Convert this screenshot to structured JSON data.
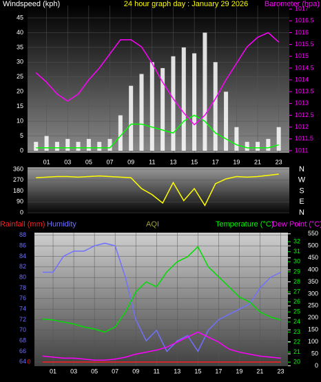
{
  "chart_data": [
    {
      "type": "line",
      "title": "24 hour graph day : January 29 2026",
      "ylabel": "Windspeed (kph)",
      "y2label": "Barometer (hpa)",
      "x": [
        0,
        1,
        2,
        3,
        4,
        5,
        6,
        7,
        8,
        9,
        10,
        11,
        12,
        13,
        14,
        15,
        16,
        17,
        18,
        19,
        20,
        21,
        22,
        23
      ],
      "xlim": [
        -0.8,
        24
      ],
      "xticks": [
        {
          "value": 1,
          "label": "01"
        },
        {
          "value": 3,
          "label": "03"
        },
        {
          "value": 5,
          "label": "05"
        },
        {
          "value": 7,
          "label": "07"
        },
        {
          "value": 9,
          "label": "09"
        },
        {
          "value": 11,
          "label": "11"
        },
        {
          "value": 13,
          "label": "13"
        },
        {
          "value": 15,
          "label": "15"
        },
        {
          "value": 17,
          "label": "17"
        },
        {
          "value": 19,
          "label": "19"
        },
        {
          "value": 21,
          "label": "21"
        },
        {
          "value": 23,
          "label": "23"
        }
      ],
      "ylim": [
        -0.7,
        49.2
      ],
      "yticks": [
        0,
        5,
        10,
        15,
        20,
        25,
        30,
        35,
        40,
        45
      ],
      "ycolor": "#ffffff",
      "y2lim": [
        1010.91,
        1017.15
      ],
      "y2ticks": [
        1011,
        1011.5,
        1012,
        1012.5,
        1013,
        1013.5,
        1014,
        1014.5,
        1015,
        1015.5,
        1016,
        1016.5,
        1017
      ],
      "y2color": "#ff00ff",
      "grid": true,
      "series": [
        {
          "color": "#ffffff",
          "style": "bars",
          "values": [
            3,
            5,
            3,
            4,
            3,
            4,
            3,
            4,
            12,
            22,
            26,
            30,
            28,
            32,
            35,
            33,
            40,
            30,
            20,
            8,
            3,
            3,
            4,
            8
          ]
        },
        {
          "color": "#00ff00",
          "values": [
            1,
            1,
            1,
            1,
            1,
            1,
            1,
            1,
            5,
            9,
            9,
            8,
            7,
            6,
            10,
            12,
            10,
            6,
            4,
            2,
            1,
            1,
            1,
            2
          ]
        },
        {
          "color": "#ff00ff",
          "axis": "y2",
          "values": [
            1014.3,
            1013.9,
            1013.4,
            1013.1,
            1013.4,
            1014.0,
            1014.5,
            1015.1,
            1015.7,
            1015.7,
            1015.4,
            1014.7,
            1013.9,
            1013.2,
            1012.6,
            1012.1,
            1012.5,
            1013.2,
            1014.0,
            1014.7,
            1015.4,
            1015.8,
            1016.0,
            1015.6
          ]
        }
      ]
    },
    {
      "type": "line",
      "x": [
        0,
        1,
        2,
        3,
        4,
        5,
        6,
        7,
        8,
        9,
        10,
        11,
        12,
        13,
        14,
        15,
        16,
        17,
        18,
        19,
        20,
        21,
        22,
        23
      ],
      "xlim": [
        -0.8,
        24
      ],
      "ylim": [
        -17,
        377
      ],
      "yticks": [
        0,
        90,
        180,
        270,
        360
      ],
      "ycolor": "#ffffff",
      "compass": [
        "N",
        "W",
        "S",
        "E",
        "N"
      ],
      "grid": true,
      "series": [
        {
          "color": "#ffff00",
          "values": [
            290,
            295,
            300,
            300,
            295,
            300,
            305,
            300,
            295,
            290,
            200,
            150,
            80,
            250,
            100,
            200,
            60,
            240,
            280,
            300,
            295,
            300,
            310,
            320
          ]
        }
      ]
    },
    {
      "type": "line",
      "labels": [
        {
          "text": "Rainfall (mm)",
          "color": "#ff2020"
        },
        {
          "text": "Humidity",
          "color": "#7070ff"
        },
        {
          "text": "AQI",
          "color": "#a0a040"
        },
        {
          "text": "Temperature (°C)",
          "color": "#00ff00"
        },
        {
          "text": "Dew Point (°C)",
          "color": "#ff00ff"
        }
      ],
      "x": [
        0,
        1,
        2,
        3,
        4,
        5,
        6,
        7,
        8,
        9,
        10,
        11,
        12,
        13,
        14,
        15,
        16,
        17,
        18,
        19,
        20,
        21,
        22,
        23
      ],
      "xlim": [
        -0.8,
        23.7
      ],
      "xticks": [
        {
          "value": 1,
          "label": "01"
        },
        {
          "value": 3,
          "label": "03"
        },
        {
          "value": 5,
          "label": "05"
        },
        {
          "value": 7,
          "label": "07"
        },
        {
          "value": 9,
          "label": "09"
        },
        {
          "value": 11,
          "label": "11"
        },
        {
          "value": 13,
          "label": "13"
        },
        {
          "value": 15,
          "label": "15"
        },
        {
          "value": 17,
          "label": "17"
        },
        {
          "value": 19,
          "label": "19"
        },
        {
          "value": 21,
          "label": "21"
        },
        {
          "value": 23,
          "label": "23"
        }
      ],
      "ylim": [
        63.2,
        88.5
      ],
      "yticks": [
        64,
        66,
        68,
        70,
        72,
        74,
        76,
        78,
        80,
        82,
        84,
        86,
        88
      ],
      "ycolor": "#7070ff",
      "y2lim": [
        19.6,
        32.9
      ],
      "y2ticks": [
        20,
        21,
        22,
        23,
        24,
        25,
        26,
        27,
        28,
        29,
        30,
        31,
        32
      ],
      "y2color": "#00ff00",
      "y3lim": [
        -1.5,
        555
      ],
      "y3ticks": [
        0,
        50,
        100,
        150,
        200,
        250,
        300,
        350,
        400,
        450,
        500,
        550
      ],
      "y3color": "#ffffff",
      "rainticks": [
        0
      ],
      "raincolor": "#ff2020",
      "grid": true,
      "series": [
        {
          "color": "#7070ff",
          "values": [
            81,
            81,
            84,
            85,
            85,
            86,
            86.5,
            86,
            80,
            72,
            68,
            70,
            66,
            68,
            69,
            66,
            70,
            72,
            73,
            74,
            75,
            78,
            80,
            81
          ]
        },
        {
          "color": "#00dd00",
          "axis": "y2",
          "values": [
            24.3,
            24.2,
            24.0,
            23.8,
            23.5,
            23.3,
            23.0,
            23.5,
            25,
            27,
            28,
            27.5,
            29,
            30,
            30.5,
            31.5,
            29.5,
            28.5,
            27.5,
            26.5,
            26,
            25,
            24.5,
            24.2
          ]
        },
        {
          "color": "#ff00ff",
          "axis": "y2",
          "values": [
            20.6,
            20.5,
            20.4,
            20.4,
            20.3,
            20.2,
            20.2,
            20.3,
            20.5,
            20.8,
            21,
            21.2,
            21.5,
            22,
            22.5,
            23,
            22.5,
            22,
            21.3,
            21,
            20.8,
            20.6,
            20.5,
            20.4
          ]
        },
        {
          "color": "#ff2020",
          "axis": "rain",
          "values": [
            0,
            0,
            0,
            0,
            0,
            0,
            0,
            0,
            0,
            0,
            0,
            0,
            0,
            0,
            0,
            0,
            0,
            0,
            0,
            0,
            0,
            0,
            0,
            0
          ]
        }
      ]
    }
  ]
}
